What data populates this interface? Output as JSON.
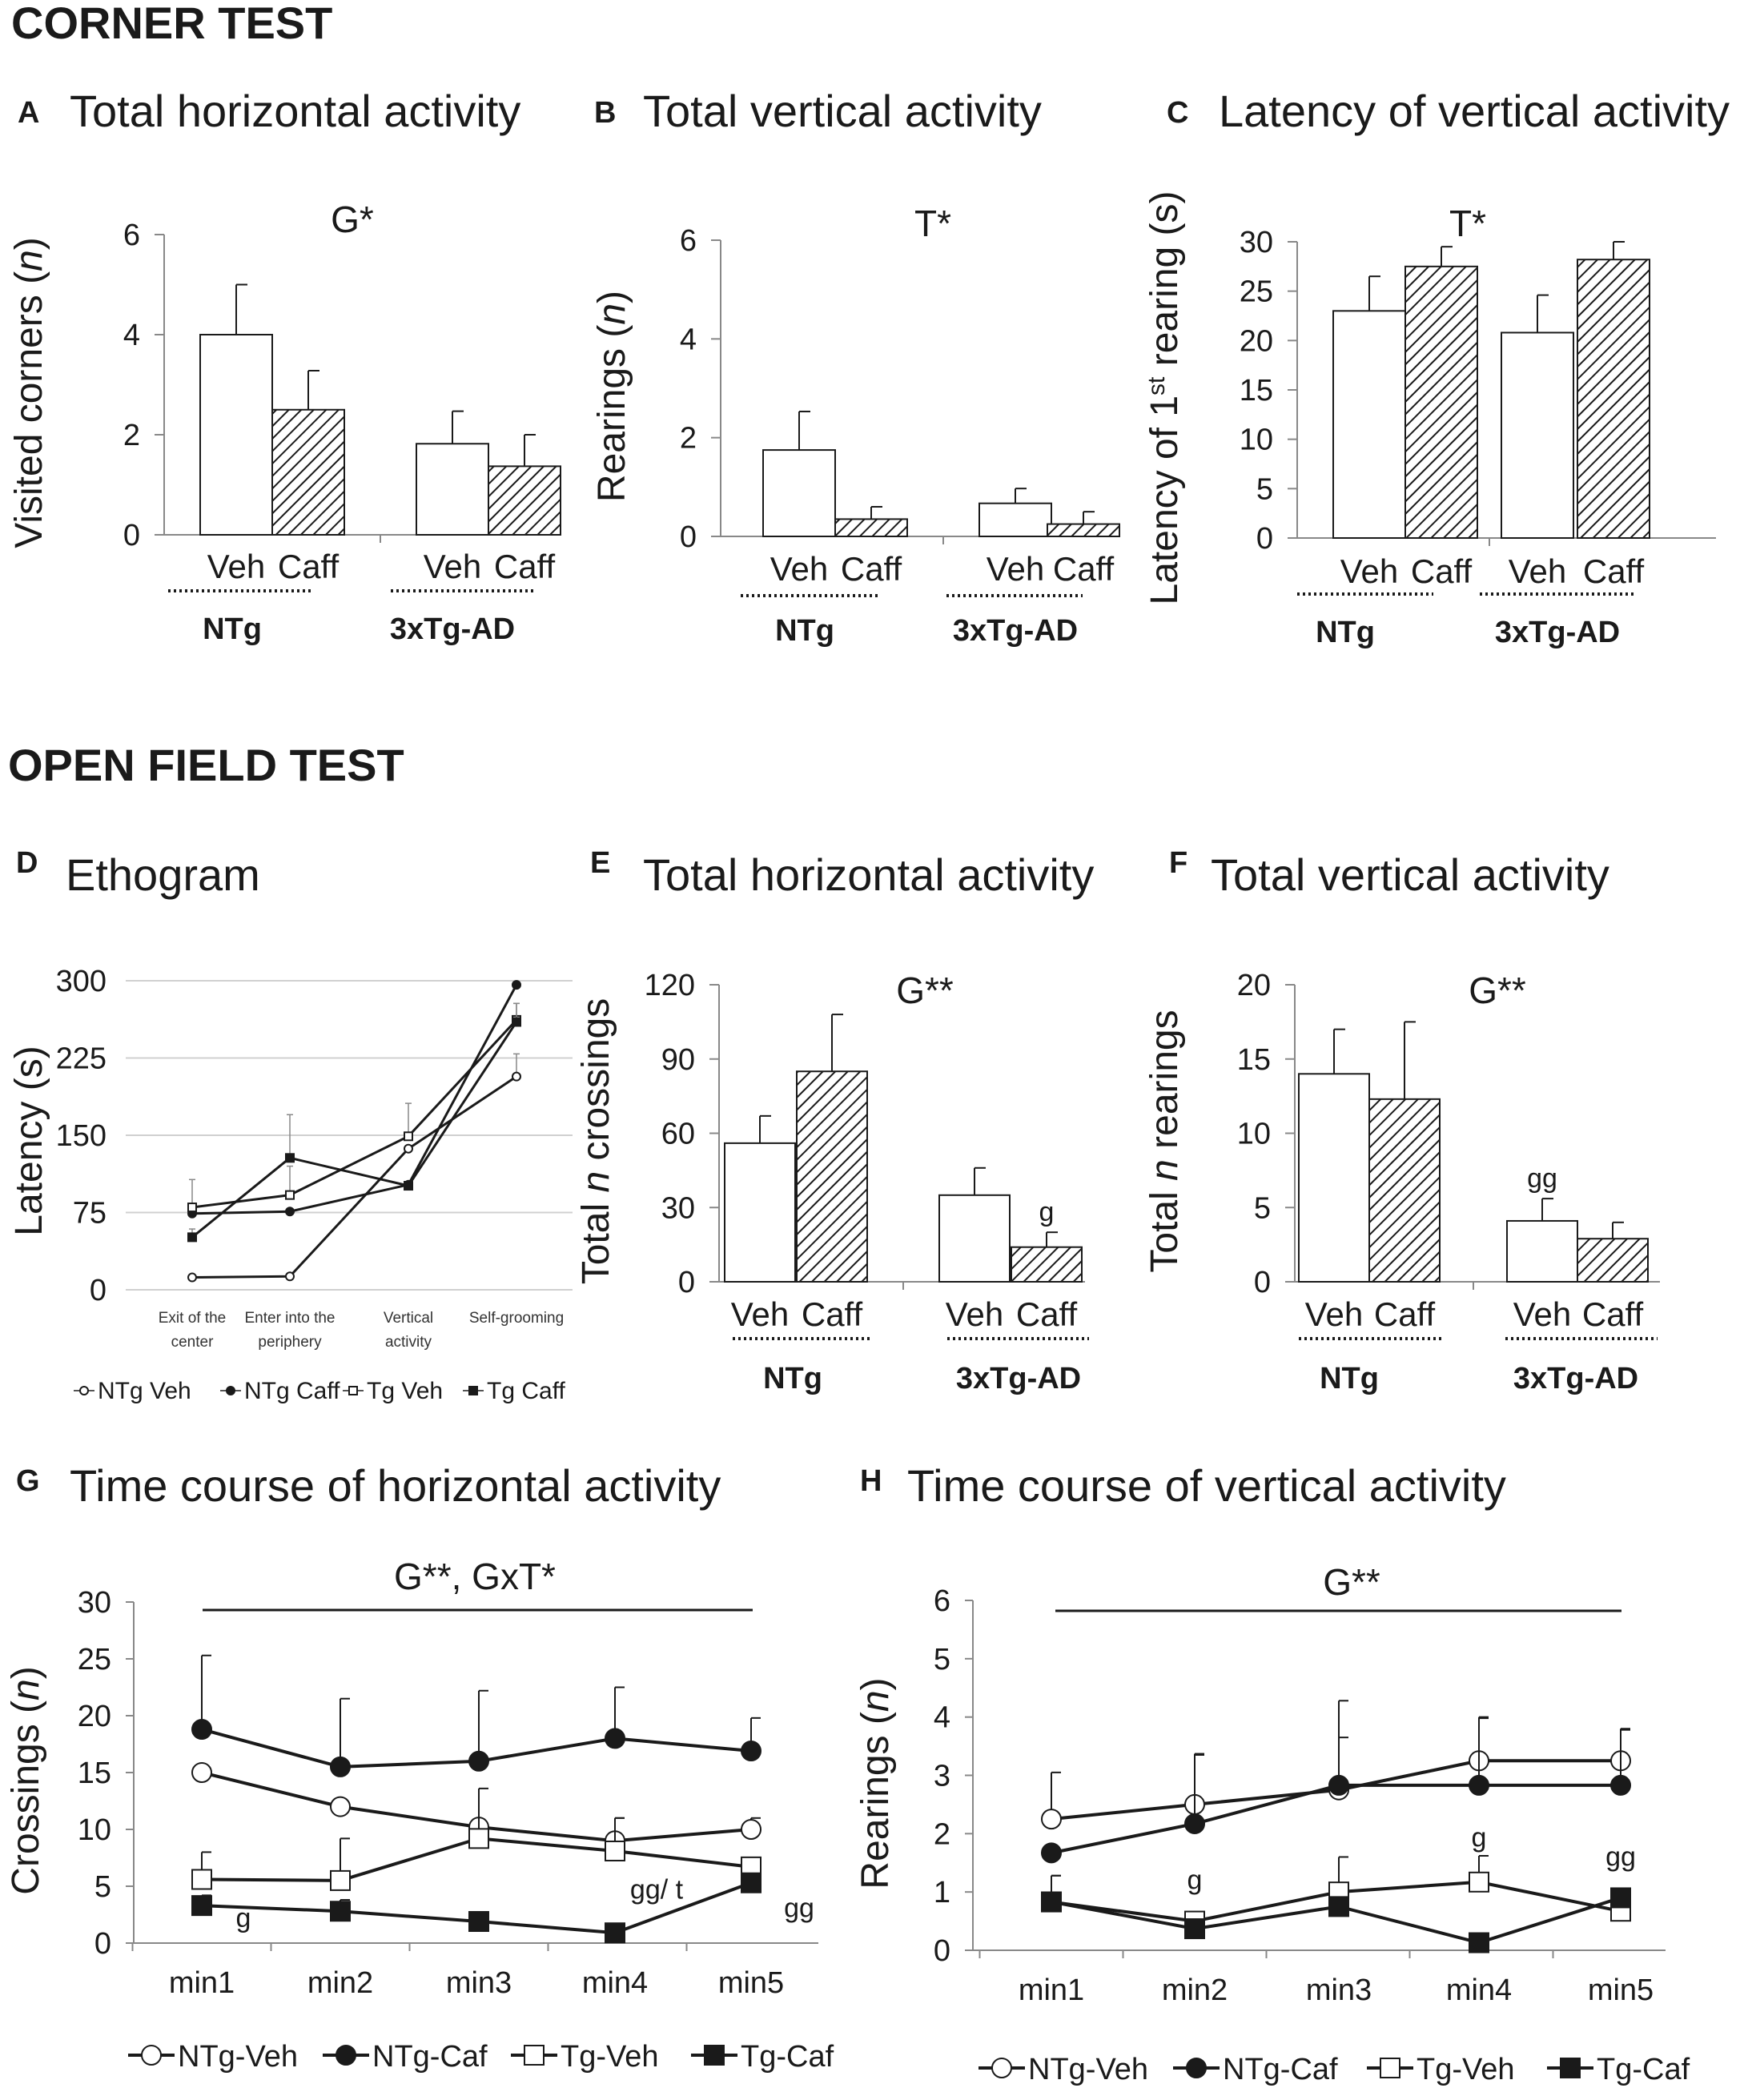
{
  "sections": {
    "corner": "CORNER TEST",
    "open_field": "OPEN FIELD TEST"
  },
  "colors": {
    "ink": "#1a1a1a",
    "bar_fill_veh": "#ffffff",
    "hatch": "#1a1a1a",
    "grid": "#cccccc"
  },
  "chart_data": [
    {
      "id": "A",
      "type": "bar",
      "title": "Total horizontal activity",
      "ylabel": [
        "Visited corners (",
        "n",
        ")"
      ],
      "ylim": [
        0,
        6
      ],
      "yticks": [
        0,
        2,
        4,
        6
      ],
      "categories": [
        "Veh",
        "Caff",
        "Veh",
        "Caff"
      ],
      "groups": [
        "NTg",
        "3xTg-AD"
      ],
      "values": [
        4.0,
        2.5,
        1.82,
        1.37
      ],
      "errors": [
        1.0,
        0.78,
        0.65,
        0.63
      ],
      "annotation": "G*",
      "sig_labels": [
        "",
        "",
        "",
        ""
      ]
    },
    {
      "id": "B",
      "type": "bar",
      "title": "Total vertical activity",
      "ylabel": [
        "Rearings (",
        "n",
        ")"
      ],
      "ylim": [
        0,
        6
      ],
      "yticks": [
        0,
        2,
        4,
        6
      ],
      "categories": [
        "Veh",
        "Caff",
        "Veh",
        "Caff"
      ],
      "groups": [
        "NTg",
        "3xTg-AD"
      ],
      "values": [
        1.75,
        0.35,
        0.67,
        0.25
      ],
      "errors": [
        0.78,
        0.25,
        0.3,
        0.25
      ],
      "annotation": "T*",
      "sig_labels": [
        "",
        "",
        "",
        ""
      ]
    },
    {
      "id": "C",
      "type": "bar",
      "title": "Latency of vertical activity",
      "ylabel": [
        "Latency of 1",
        "st",
        " rearing (s)"
      ],
      "ylim": [
        0,
        30
      ],
      "yticks": [
        0,
        5,
        10,
        15,
        20,
        25,
        30
      ],
      "categories": [
        "Veh",
        "Caff",
        "Veh",
        "Caff"
      ],
      "groups": [
        "NTg",
        "3xTg-AD"
      ],
      "values": [
        23,
        27.5,
        20.8,
        28.2
      ],
      "errors": [
        3.5,
        2.0,
        3.8,
        1.8
      ],
      "annotation": "T*",
      "sig_labels": [
        "",
        "",
        "",
        ""
      ]
    },
    {
      "id": "D",
      "type": "line",
      "title": "Ethogram",
      "ylabel": [
        "Latency (s)"
      ],
      "ylim": [
        0,
        300
      ],
      "yticks": [
        0,
        75,
        150,
        225,
        300
      ],
      "categories": [
        [
          "Exit of the",
          "center"
        ],
        [
          "Enter into the",
          "periphery"
        ],
        [
          "Vertical",
          "activity"
        ],
        [
          "Self-grooming"
        ]
      ],
      "series": [
        {
          "name": "NTg Veh",
          "marker": "circle-open",
          "values": [
            12,
            13,
            137,
            207
          ],
          "errors": [
            0,
            0,
            0,
            22
          ]
        },
        {
          "name": "NTg Caff",
          "marker": "circle-filled",
          "values": [
            74,
            76,
            102,
            296
          ],
          "errors": [
            0,
            0,
            0,
            0
          ]
        },
        {
          "name": "Tg Veh",
          "marker": "square-open",
          "values": [
            80,
            92,
            149,
            262
          ],
          "errors": [
            27,
            28,
            32,
            16
          ]
        },
        {
          "name": "Tg Caff",
          "marker": "square-filled",
          "values": [
            51,
            128,
            101,
            260
          ],
          "errors": [
            8,
            42,
            0,
            18
          ]
        }
      ]
    },
    {
      "id": "E",
      "type": "bar",
      "title": "Total horizontal activity",
      "ylabel": [
        "Total ",
        "n",
        " crossings"
      ],
      "ylim": [
        0,
        120
      ],
      "yticks": [
        0,
        30,
        60,
        90,
        120
      ],
      "categories": [
        "Veh",
        "Caff",
        "Veh",
        "Caff"
      ],
      "groups": [
        "NTg",
        "3xTg-AD"
      ],
      "values": [
        56,
        85,
        35,
        14
      ],
      "errors": [
        11,
        23,
        11,
        6
      ],
      "annotation": "G**",
      "sig_labels": [
        "",
        "",
        "",
        "g"
      ]
    },
    {
      "id": "F",
      "type": "bar",
      "title": "Total vertical activity",
      "ylabel": [
        "Total ",
        "n",
        " rearings"
      ],
      "ylim": [
        0,
        20
      ],
      "yticks": [
        0,
        5,
        10,
        15,
        20
      ],
      "categories": [
        "Veh",
        "Caff",
        "Veh",
        "Caff"
      ],
      "groups": [
        "NTg",
        "3xTg-AD"
      ],
      "values": [
        14,
        12.3,
        4.1,
        2.9
      ],
      "errors": [
        3,
        5.2,
        1.5,
        1.1
      ],
      "annotation": "G**",
      "sig_labels": [
        "",
        "",
        "gg",
        ""
      ]
    },
    {
      "id": "G",
      "type": "line",
      "title": "Time course of horizontal activity",
      "ylabel": [
        "Crossings (",
        "n",
        ")"
      ],
      "ylim": [
        0,
        30
      ],
      "yticks": [
        0,
        5,
        10,
        15,
        20,
        25,
        30
      ],
      "categories": [
        "min1",
        "min2",
        "min3",
        "min4",
        "min5"
      ],
      "annotation": "G**, GxT*",
      "series": [
        {
          "name": "NTg-Veh",
          "marker": "circle-open",
          "values": [
            15,
            12,
            10.2,
            9,
            10
          ],
          "errors": [
            0,
            0,
            0,
            2,
            1
          ]
        },
        {
          "name": "NTg-Caf",
          "marker": "circle-filled",
          "values": [
            18.8,
            15.5,
            16,
            18,
            16.9
          ],
          "errors": [
            6.5,
            6,
            6.2,
            4.5,
            2.9
          ]
        },
        {
          "name": "Tg-Veh",
          "marker": "square-open",
          "values": [
            5.6,
            5.5,
            9.2,
            8.1,
            6.7
          ],
          "errors": [
            2.4,
            3.7,
            4.4,
            2.9,
            0
          ]
        },
        {
          "name": "Tg-Caf",
          "marker": "square-filled",
          "values": [
            3.3,
            2.8,
            1.9,
            0.9,
            5.3
          ],
          "errors": [
            0.9,
            1,
            0,
            0,
            0
          ]
        }
      ],
      "sig_labels": [
        {
          "x": "min1",
          "y": 1.4,
          "text": "g"
        },
        {
          "x": "min4",
          "y": 3.9,
          "text": "gg/ t"
        },
        {
          "x": "min5",
          "y": 2.3,
          "text": "gg"
        }
      ]
    },
    {
      "id": "H",
      "type": "line",
      "title": "Time course of vertical activity",
      "ylabel": [
        "Rearings (",
        "n",
        ")"
      ],
      "ylim": [
        0,
        6
      ],
      "yticks": [
        0,
        1,
        2,
        3,
        4,
        5,
        6
      ],
      "categories": [
        "min1",
        "min2",
        "min3",
        "min4",
        "min5"
      ],
      "annotation": "G**",
      "series": [
        {
          "name": "NTg-Veh",
          "marker": "circle-open",
          "values": [
            2.25,
            2.5,
            2.75,
            3.25,
            3.25
          ],
          "errors": [
            0.8,
            0.85,
            0.9,
            0.75,
            0.55
          ]
        },
        {
          "name": "NTg-Caf",
          "marker": "circle-filled",
          "values": [
            1.67,
            2.17,
            2.83,
            2.83,
            2.83
          ],
          "errors": [
            0,
            1.2,
            1.45,
            1.15,
            0.95
          ]
        },
        {
          "name": "Tg-Veh",
          "marker": "square-open",
          "values": [
            0.83,
            0.5,
            1,
            1.17,
            0.67
          ],
          "errors": [
            0.45,
            0,
            0.6,
            0.45,
            0
          ]
        },
        {
          "name": "Tg-Caf",
          "marker": "square-filled",
          "values": [
            0.83,
            0.37,
            0.75,
            0.13,
            0.9
          ],
          "errors": [
            0.45,
            0,
            0,
            0,
            0
          ]
        }
      ],
      "sig_labels": [
        {
          "x": "min2",
          "y": 1.05,
          "text": "g"
        },
        {
          "x": "min4",
          "y": 1.78,
          "text": "g"
        },
        {
          "x": "min5",
          "y": 1.45,
          "text": "gg"
        }
      ]
    }
  ]
}
